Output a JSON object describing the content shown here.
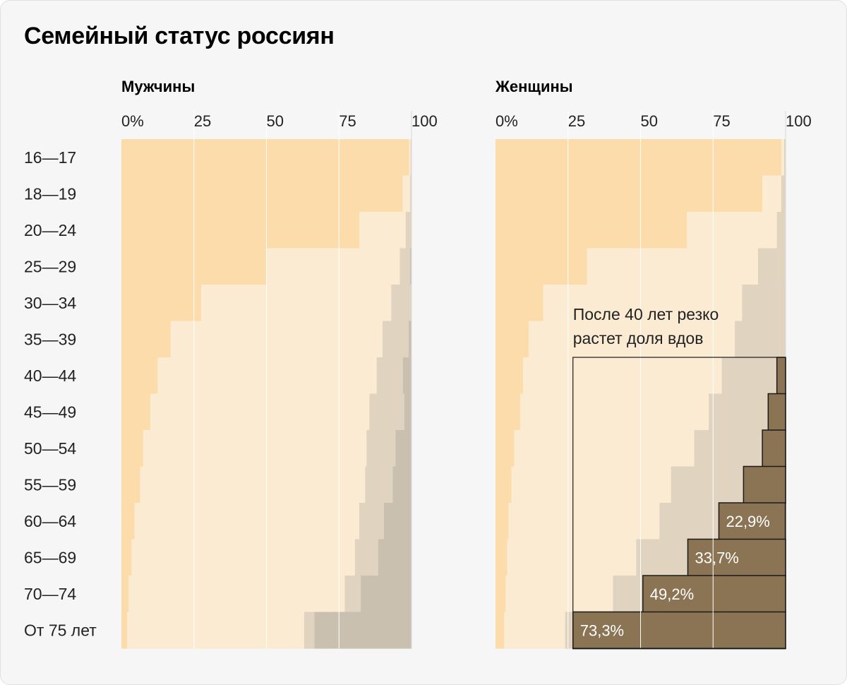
{
  "title": "Семейный статус россиян",
  "colors": {
    "never_married": "#fbdcaa",
    "married": "#fbebd3",
    "divorced": "#e0d3c0",
    "widowed_men": "#cac0b0",
    "widowed_highlight": "#8b7453",
    "gridline": "#ffffff",
    "highlight_border": "#1a1a1a"
  },
  "annotation": {
    "line1": "После 40 лет резко",
    "line2": "растет доля вдов"
  },
  "chart_data": {
    "type": "bar",
    "stacked": true,
    "orientation": "horizontal",
    "categories": [
      "16—17",
      "18—19",
      "20—24",
      "25—29",
      "30—34",
      "35—39",
      "40—44",
      "45—49",
      "50—54",
      "55—59",
      "60—64",
      "65—69",
      "70—74",
      "От 75 лет"
    ],
    "axis_ticks": [
      "0%",
      "25",
      "50",
      "75",
      "100"
    ],
    "xlim": [
      0,
      100
    ],
    "grid": true,
    "panels": [
      {
        "title": "Мужчины",
        "series": [
          {
            "values": [
              99.2,
              97.0,
              82.0,
              50.0,
              27.5,
              17.0,
              12.5,
              10.0,
              7.5,
              6.5,
              4.5,
              3.5,
              2.5,
              2.0
            ]
          },
          {
            "values": [
              0.5,
              2.5,
              16.0,
              46.0,
              65.5,
              73.0,
              75.5,
              75.5,
              77.0,
              77.5,
              77.5,
              77.0,
              74.5,
              61.0
            ]
          },
          {
            "values": [
              0.3,
              0.5,
              2.0,
              3.5,
              7.0,
              9.0,
              9.0,
              12.0,
              10.0,
              9.5,
              8.5,
              8.0,
              5.5,
              3.5
            ]
          },
          {
            "values": [
              0.0,
              0.0,
              0.0,
              0.5,
              0.0,
              1.0,
              3.0,
              2.5,
              5.5,
              6.5,
              9.5,
              11.5,
              17.5,
              33.5
            ]
          }
        ]
      },
      {
        "title": "Женщины",
        "series": [
          {
            "values": [
              98.5,
              92.0,
              66.0,
              31.5,
              16.5,
              11.5,
              9.5,
              8.5,
              6.5,
              5.5,
              4.5,
              4.0,
              3.5,
              3.0
            ]
          },
          {
            "values": [
              1.0,
              6.5,
              31.0,
              59.0,
              68.5,
              71.0,
              68.5,
              65.0,
              62.0,
              55.0,
              52.0,
              44.5,
              37.0,
              21.0
            ]
          },
          {
            "values": [
              0.5,
              1.5,
              3.0,
              7.0,
              13.0,
              15.5,
              19.0,
              20.5,
              23.5,
              25.0,
              20.5,
              17.8,
              10.3,
              2.7
            ]
          },
          {
            "values": [
              0.0,
              0.0,
              0.0,
              2.5,
              2.0,
              2.0,
              3.0,
              6.0,
              8.0,
              14.5,
              22.9,
              33.7,
              49.2,
              73.3
            ],
            "data_labels": [
              "",
              "",
              "",
              "",
              "",
              "",
              "",
              "",
              "",
              "",
              "22,9%",
              "33,7%",
              "49,2%",
              "73,3%"
            ]
          }
        ]
      }
    ]
  }
}
